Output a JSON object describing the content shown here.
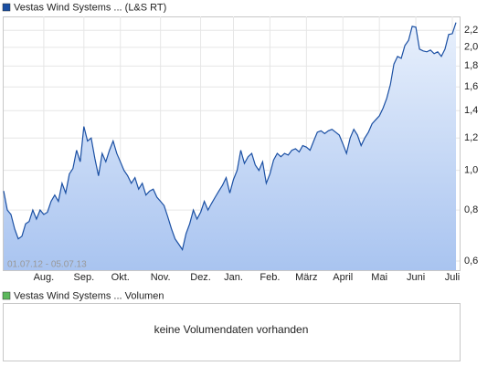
{
  "chart_data": [
    {
      "type": "line",
      "series": [
        {
          "name": "Vestas Wind Systems ... (L&S RT)",
          "color": "#1a4fa3",
          "values": [
            0.89,
            0.8,
            0.78,
            0.72,
            0.68,
            0.69,
            0.74,
            0.75,
            0.8,
            0.76,
            0.8,
            0.78,
            0.79,
            0.84,
            0.87,
            0.84,
            0.93,
            0.88,
            0.98,
            1.01,
            1.12,
            1.05,
            1.28,
            1.18,
            1.2,
            1.07,
            0.97,
            1.1,
            1.05,
            1.12,
            1.18,
            1.1,
            1.05,
            1.0,
            0.97,
            0.93,
            0.96,
            0.9,
            0.93,
            0.87,
            0.89,
            0.9,
            0.86,
            0.84,
            0.82,
            0.77,
            0.72,
            0.68,
            0.66,
            0.64,
            0.7,
            0.74,
            0.8,
            0.76,
            0.79,
            0.84,
            0.8,
            0.83,
            0.86,
            0.89,
            0.92,
            0.96,
            0.88,
            0.95,
            1.0,
            1.12,
            1.04,
            1.08,
            1.1,
            1.03,
            1.0,
            1.05,
            0.93,
            0.98,
            1.06,
            1.1,
            1.08,
            1.1,
            1.09,
            1.12,
            1.13,
            1.11,
            1.15,
            1.14,
            1.12,
            1.18,
            1.24,
            1.25,
            1.23,
            1.25,
            1.26,
            1.24,
            1.22,
            1.16,
            1.1,
            1.2,
            1.26,
            1.22,
            1.15,
            1.2,
            1.24,
            1.3,
            1.33,
            1.36,
            1.42,
            1.5,
            1.62,
            1.82,
            1.9,
            1.88,
            2.02,
            2.08,
            2.25,
            2.24,
            1.98,
            1.96,
            1.95,
            1.97,
            1.93,
            1.95,
            1.9,
            1.98,
            2.15,
            2.16,
            2.3
          ]
        }
      ],
      "xlim": [
        0,
        125
      ],
      "xticks": [
        {
          "value": 11,
          "label": "Aug."
        },
        {
          "value": 22,
          "label": "Sep."
        },
        {
          "value": 32,
          "label": "Okt."
        },
        {
          "value": 43,
          "label": "Nov."
        },
        {
          "value": 54,
          "label": "Dez."
        },
        {
          "value": 63,
          "label": "Jan."
        },
        {
          "value": 73,
          "label": "Feb."
        },
        {
          "value": 83,
          "label": "März"
        },
        {
          "value": 93,
          "label": "April"
        },
        {
          "value": 103,
          "label": "Mai"
        },
        {
          "value": 113,
          "label": "Juni"
        },
        {
          "value": 123,
          "label": "Juli"
        }
      ],
      "ylim": [
        0.57,
        2.38
      ],
      "yticks": [
        {
          "value": 0.6,
          "label": "0,6"
        },
        {
          "value": 0.8,
          "label": "0,8"
        },
        {
          "value": 1,
          "label": "1,0"
        },
        {
          "value": 1.2,
          "label": "1,2"
        },
        {
          "value": 1.4,
          "label": "1,4"
        },
        {
          "value": 1.6,
          "label": "1,6"
        },
        {
          "value": 1.8,
          "label": "1,8"
        },
        {
          "value": 2,
          "label": "2,0"
        },
        {
          "value": 2.2,
          "label": "2,2"
        }
      ],
      "log_scale": true,
      "grid": true,
      "annotation": "01.07.12 - 05.07.13"
    },
    {
      "type": "bar",
      "series": [
        {
          "name": "Vestas Wind Systems ... Volumen",
          "color": "#5cb85c",
          "values": []
        }
      ],
      "annotation": "keine Volumendaten vorhanden"
    }
  ]
}
